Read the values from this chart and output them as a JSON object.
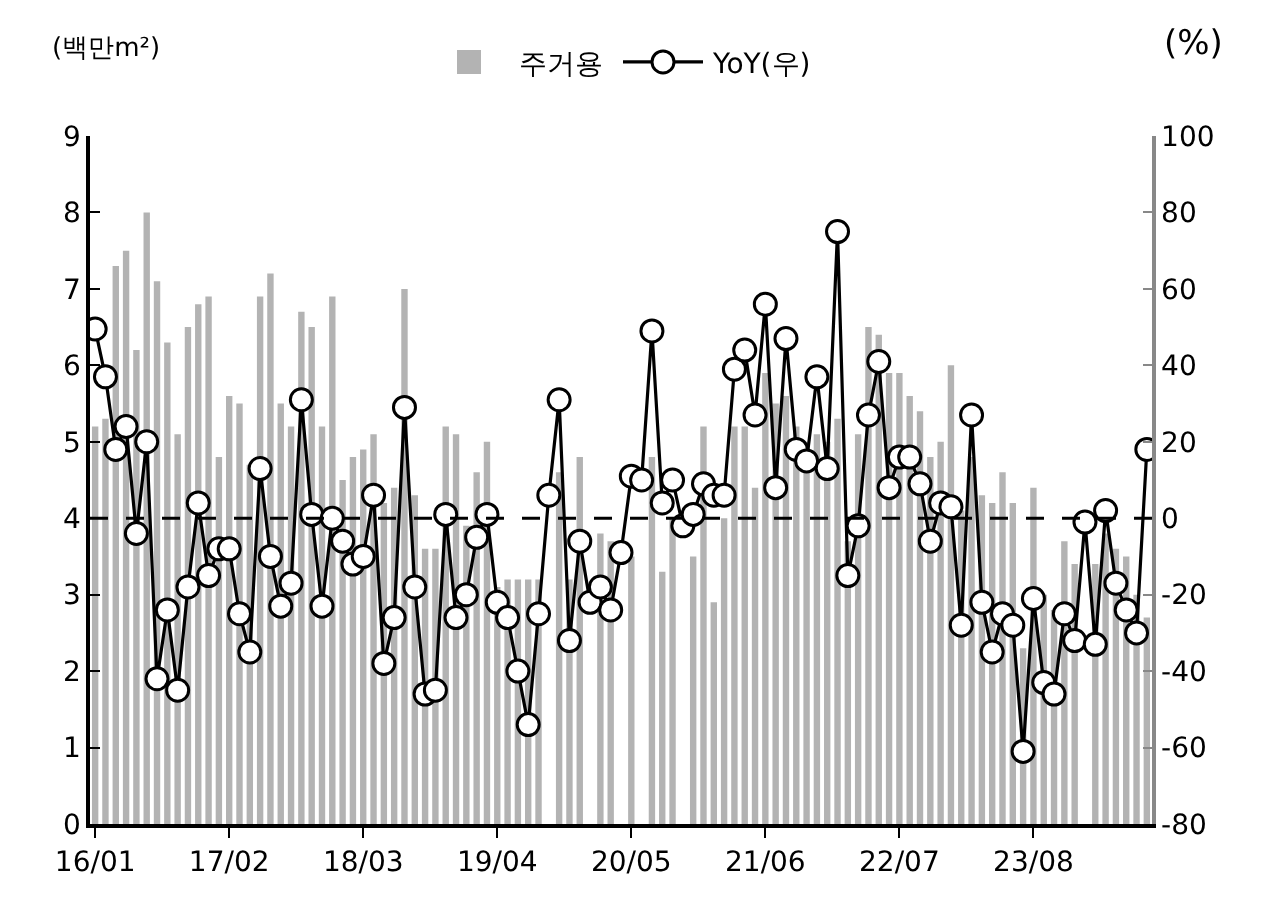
{
  "chart_data": {
    "type": "bar",
    "ylabel": "(백만m²)",
    "y2label": "(%)",
    "categories": [
      "16/01",
      null,
      null,
      null,
      null,
      null,
      null,
      null,
      null,
      null,
      null,
      null,
      null,
      "17/02",
      null,
      null,
      null,
      null,
      null,
      null,
      null,
      null,
      null,
      null,
      null,
      null,
      "18/03",
      null,
      null,
      null,
      null,
      null,
      null,
      null,
      null,
      null,
      null,
      null,
      null,
      "19/04",
      null,
      null,
      null,
      null,
      null,
      null,
      null,
      null,
      null,
      null,
      null,
      null,
      "20/05",
      null,
      null,
      null,
      null,
      null,
      null,
      null,
      null,
      null,
      null,
      null,
      null,
      "21/06",
      null,
      null,
      null,
      null,
      null,
      null,
      null,
      null,
      null,
      null,
      null,
      null,
      "22/07",
      null,
      null,
      null,
      null,
      null,
      null,
      null,
      null,
      null,
      null,
      null,
      null,
      "23/08",
      null,
      null,
      null,
      null,
      null,
      null,
      null,
      null,
      null,
      null,
      null
    ],
    "series": [
      {
        "name": "주거용",
        "color": "#b3b3b3",
        "values": [
          5.2,
          5.3,
          7.3,
          7.5,
          6.2,
          8.0,
          7.1,
          6.3,
          5.1,
          6.5,
          6.8,
          6.9,
          4.8,
          5.6,
          5.5,
          4.7,
          6.9,
          7.2,
          5.5,
          5.2,
          6.7,
          6.5,
          5.2,
          6.9,
          4.5,
          4.8,
          4.9,
          5.1,
          4.2,
          4.4,
          7.0,
          4.3,
          3.6,
          3.6,
          5.2,
          5.1,
          3.9,
          4.6,
          5.0,
          3.1,
          3.2,
          3.2,
          3.2,
          3.2,
          null,
          4.6,
          3.2,
          4.8,
          null,
          3.8,
          3.7,
          null,
          3.5,
          null,
          4.8,
          3.3,
          4.0,
          null,
          3.5,
          5.2,
          2.9,
          4.0,
          5.2,
          5.2,
          4.4,
          5.9,
          5.5,
          5.6,
          5.2,
          5.0,
          5.1,
          5.0,
          5.3,
          3.7,
          5.1,
          6.5,
          6.4,
          5.9,
          5.9,
          5.6,
          5.4,
          4.8,
          5.0,
          6.0,
          4.1,
          4.8,
          4.3,
          4.2,
          4.6,
          4.2,
          2.3,
          4.4,
          3.0,
          2.8,
          3.7,
          3.4,
          null,
          3.4,
          3.8,
          3.6,
          3.5,
          3.0,
          2.7
        ]
      },
      {
        "name": "YoY(우)",
        "type": "line",
        "axis": "y2",
        "color": "#000000",
        "marker": "circle",
        "values": [
          49.5,
          37,
          18,
          24,
          -4,
          20,
          -42,
          -24,
          -45,
          -18,
          4,
          -15,
          -8,
          -8,
          -25,
          -35,
          13,
          -10,
          -23,
          -17,
          31,
          1,
          -23,
          0,
          -6,
          -12,
          -10,
          6,
          -38,
          -26,
          29,
          -18,
          -46,
          -45,
          1,
          -26,
          -20,
          -5,
          1,
          -22,
          -26,
          -40,
          -54,
          -25,
          6,
          31,
          -32,
          -6,
          -22,
          -18,
          -24,
          -9,
          11,
          10,
          49,
          4,
          10,
          -2,
          1,
          9,
          6,
          6,
          39,
          44,
          27,
          56,
          8,
          47,
          18,
          15,
          37,
          13,
          75,
          -15,
          -2,
          27,
          41,
          8,
          16,
          16,
          9,
          -6,
          4,
          3,
          -28,
          27,
          -22,
          -35,
          -25,
          -28,
          -61,
          -21,
          -43,
          -46,
          -25,
          -32,
          -1,
          -33,
          2,
          -17,
          -24,
          -30,
          18
        ]
      }
    ],
    "ylim": [
      0,
      9
    ],
    "yticks": [
      0,
      1,
      2,
      3,
      4,
      5,
      6,
      7,
      8,
      9
    ],
    "y2lim": [
      -80,
      100
    ],
    "y2ticks": [
      -80,
      -60,
      -40,
      -20,
      0,
      20,
      40,
      60,
      80,
      100
    ],
    "ref_lines": [
      {
        "axis": "y2",
        "value": 0,
        "color": "#000000",
        "line_style": "dashed"
      }
    ],
    "legend": "top"
  }
}
